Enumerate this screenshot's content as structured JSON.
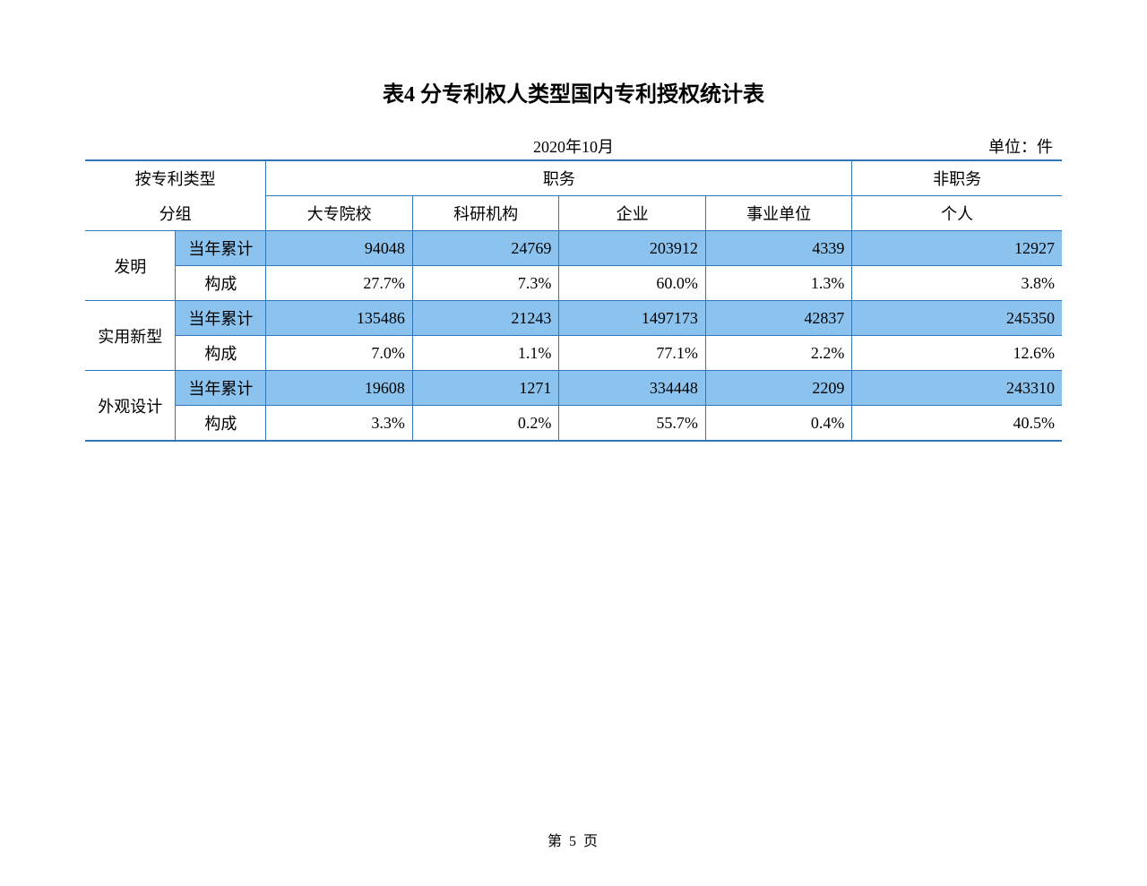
{
  "title": "表4  分专利权人类型国内专利授权统计表",
  "date": "2020年10月",
  "unit": "单位：件",
  "pageNumber": "第 5 页",
  "headers": {
    "groupType1": "按专利类型",
    "groupType2": "分组",
    "category1": "职务",
    "category2": "非职务",
    "subcols": {
      "col1": "大专院校",
      "col2": "科研机构",
      "col3": "企业",
      "col4": "事业单位",
      "col5": "个人"
    }
  },
  "rowLabels": {
    "cumulative": "当年累计",
    "composition": "构成"
  },
  "groups": {
    "invention": {
      "label": "发明",
      "cumulative": {
        "col1": "94048",
        "col2": "24769",
        "col3": "203912",
        "col4": "4339",
        "col5": "12927"
      },
      "composition": {
        "col1": "27.7%",
        "col2": "7.3%",
        "col3": "60.0%",
        "col4": "1.3%",
        "col5": "3.8%"
      }
    },
    "utility": {
      "label": "实用新型",
      "cumulative": {
        "col1": "135486",
        "col2": "21243",
        "col3": "1497173",
        "col4": "42837",
        "col5": "245350"
      },
      "composition": {
        "col1": "7.0%",
        "col2": "1.1%",
        "col3": "77.1%",
        "col4": "2.2%",
        "col5": "12.6%"
      }
    },
    "design": {
      "label": "外观设计",
      "cumulative": {
        "col1": "19608",
        "col2": "1271",
        "col3": "334448",
        "col4": "2209",
        "col5": "243310"
      },
      "composition": {
        "col1": "3.3%",
        "col2": "0.2%",
        "col3": "55.7%",
        "col4": "0.4%",
        "col5": "40.5%"
      }
    }
  },
  "colors": {
    "border": "#3176b8",
    "highlight": "#8cc3ee",
    "background": "#ffffff",
    "text": "#000000"
  }
}
